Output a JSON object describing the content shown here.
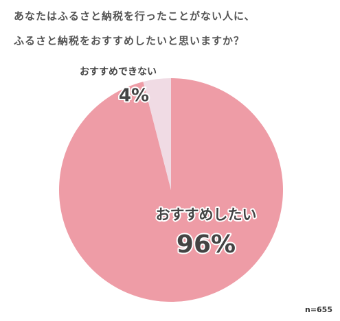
{
  "chart_data": {
    "type": "pie",
    "title": [
      "あなたはふるさと納税を行ったことがない人に、",
      "ふるさと納税をおすすめしたいと思いますか？"
    ],
    "categories": [
      "おすすめしたい",
      "おすすめできない"
    ],
    "values": [
      96,
      4
    ],
    "value_labels": [
      "96%",
      "4%"
    ],
    "colors": [
      "#ee9ca6",
      "#f0dbe4"
    ],
    "note": "n=655"
  }
}
